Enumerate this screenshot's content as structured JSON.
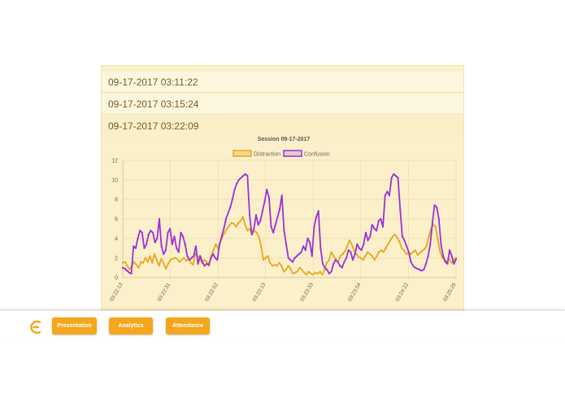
{
  "sessions": [
    {
      "label": "09-17-2017 03:11:22"
    },
    {
      "label": "09-17-2017 03:15:24"
    },
    {
      "label": "09-17-2017 03:22:09"
    }
  ],
  "nav": {
    "presentation": "Presentation",
    "analytics": "Analytics",
    "attendance": "Attendance"
  },
  "colors": {
    "accent": "#f4a71c",
    "distraction": "#e6a823",
    "confusion": "#9b30d9"
  },
  "chart_data": {
    "type": "line",
    "title": "Session 09-17-2017",
    "xlabel": "",
    "ylabel": "",
    "ylim": [
      0,
      12
    ],
    "yticks": [
      0,
      2,
      4,
      6,
      8,
      10,
      12
    ],
    "grid": true,
    "legend": "top-center",
    "x_tick_labels": [
      "03:22:13",
      "03:22:31",
      "03:22:52",
      "03:23:13",
      "03:23:33",
      "03:23:54",
      "03:24:22",
      "03:25:26"
    ],
    "series": [
      {
        "name": "Distraction",
        "color": "#e6a823",
        "values": [
          1.5,
          1.6,
          1.2,
          0.8,
          1.2,
          1.6,
          1.3,
          1.0,
          1.6,
          1.5,
          2.0,
          1.6,
          2.2,
          1.5,
          2.4,
          1.8,
          1.2,
          1.9,
          1.5,
          0.9,
          1.4,
          1.8,
          1.9,
          2.0,
          1.9,
          1.6,
          1.8,
          2.0,
          1.7,
          1.9,
          1.5,
          1.3,
          2.4,
          2.2,
          1.9,
          1.5,
          1.8,
          1.6,
          1.2,
          2.2,
          2.8,
          3.4,
          3.0,
          3.6,
          4.2,
          4.6,
          5.0,
          5.3,
          5.6,
          5.5,
          5.2,
          5.6,
          5.8,
          6.2,
          5.4,
          4.8,
          5.0,
          4.4,
          4.8,
          4.6,
          4.2,
          3.2,
          1.8,
          2.0,
          2.2,
          1.5,
          1.2,
          1.3,
          1.2,
          1.5,
          1.2,
          0.6,
          0.8,
          1.2,
          0.9,
          0.4,
          0.5,
          0.6,
          1.0,
          0.8,
          0.5,
          0.3,
          0.6,
          0.4,
          0.3,
          0.5,
          0.4,
          0.6,
          0.3,
          0.8,
          1.5,
          1.8,
          2.6,
          2.2,
          1.8,
          1.6,
          2.2,
          2.4,
          2.7,
          3.2,
          3.8,
          3.4,
          2.8,
          2.4,
          2.1,
          2.0,
          1.8,
          2.2,
          2.6,
          2.4,
          2.2,
          1.8,
          2.2,
          2.6,
          2.8,
          2.6,
          3.0,
          3.4,
          3.8,
          4.2,
          4.4,
          4.1,
          3.7,
          3.0,
          2.8,
          2.4,
          2.5,
          2.4,
          2.6,
          2.8,
          2.3,
          2.5,
          2.7,
          2.9,
          3.2,
          4.2,
          5.0,
          5.4,
          5.2,
          3.8,
          2.6,
          2.0,
          1.8,
          1.6,
          1.9,
          1.5,
          1.8,
          2.0
        ]
      },
      {
        "name": "Confusion",
        "color": "#9b30d9",
        "values": [
          1.0,
          0.9,
          0.7,
          0.5,
          0.4,
          3.2,
          3.0,
          4.0,
          4.8,
          4.6,
          3.0,
          3.4,
          4.4,
          4.8,
          4.6,
          3.6,
          4.0,
          6.0,
          3.2,
          2.4,
          2.8,
          4.6,
          5.0,
          3.4,
          4.2,
          3.0,
          2.6,
          4.6,
          4.2,
          3.4,
          2.2,
          1.8,
          2.0,
          2.2,
          3.2,
          1.4,
          2.2,
          1.6,
          1.2,
          1.4,
          1.3,
          2.0,
          2.4,
          2.0,
          1.8,
          3.4,
          4.2,
          5.0,
          6.0,
          6.6,
          7.2,
          8.0,
          9.0,
          9.6,
          10.0,
          10.2,
          10.4,
          10.6,
          10.4,
          6.4,
          4.4,
          5.0,
          6.4,
          5.4,
          5.8,
          6.8,
          7.8,
          9.0,
          8.2,
          5.2,
          4.6,
          5.4,
          6.2,
          7.0,
          8.4,
          4.8,
          3.4,
          2.0,
          1.8,
          1.6,
          2.0,
          2.2,
          2.4,
          2.6,
          3.2,
          2.8,
          4.0,
          3.6,
          2.2,
          5.2,
          6.2,
          6.8,
          3.0,
          1.4,
          1.0,
          0.8,
          0.4,
          0.6,
          1.4,
          1.8,
          1.6,
          1.2,
          1.0,
          1.6,
          2.0,
          2.8,
          2.6,
          1.8,
          2.4,
          3.4,
          3.0,
          2.8,
          3.4,
          4.6,
          3.8,
          4.2,
          5.4,
          5.0,
          4.8,
          5.8,
          6.0,
          5.2,
          8.4,
          8.8,
          8.4,
          10.2,
          10.6,
          10.4,
          10.2,
          7.0,
          4.2,
          3.8,
          3.2,
          2.6,
          1.6,
          1.2,
          1.0,
          0.9,
          0.8,
          0.7,
          0.8,
          1.4,
          2.2,
          3.4,
          5.6,
          7.4,
          7.2,
          6.0,
          3.4,
          2.2,
          1.6,
          1.4,
          2.8,
          2.2,
          1.4,
          1.9
        ]
      }
    ]
  }
}
